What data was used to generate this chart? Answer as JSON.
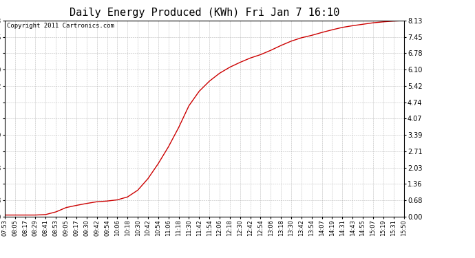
{
  "title": "Daily Energy Produced (KWh) Fri Jan 7 16:10",
  "copyright": "Copyright 2011 Cartronics.com",
  "line_color": "#cc0000",
  "bg_color": "#ffffff",
  "plot_bg_color": "#ffffff",
  "grid_color": "#aaaaaa",
  "yticks": [
    0.0,
    0.68,
    1.36,
    2.03,
    2.71,
    3.39,
    4.07,
    4.74,
    5.42,
    6.1,
    6.78,
    7.45,
    8.13
  ],
  "ymax": 8.13,
  "ymin": 0.0,
  "x_labels": [
    "07:53",
    "08:05",
    "08:17",
    "08:29",
    "08:41",
    "08:53",
    "09:05",
    "09:17",
    "09:30",
    "09:42",
    "09:54",
    "10:06",
    "10:18",
    "10:30",
    "10:42",
    "10:54",
    "11:06",
    "11:18",
    "11:30",
    "11:42",
    "11:54",
    "12:06",
    "12:18",
    "12:30",
    "12:42",
    "12:54",
    "13:06",
    "13:18",
    "13:30",
    "13:42",
    "13:54",
    "14:07",
    "14:19",
    "14:31",
    "14:43",
    "14:55",
    "15:07",
    "15:19",
    "15:31",
    "15:50"
  ],
  "y_values": [
    0.07,
    0.07,
    0.07,
    0.07,
    0.09,
    0.2,
    0.38,
    0.47,
    0.55,
    0.62,
    0.65,
    0.7,
    0.82,
    1.1,
    1.58,
    2.2,
    2.9,
    3.7,
    4.6,
    5.2,
    5.62,
    5.95,
    6.2,
    6.4,
    6.58,
    6.72,
    6.9,
    7.1,
    7.28,
    7.42,
    7.52,
    7.64,
    7.75,
    7.85,
    7.92,
    7.98,
    8.04,
    8.08,
    8.11,
    8.13
  ],
  "title_fontsize": 11,
  "copyright_fontsize": 6.5,
  "tick_fontsize": 6,
  "ytick_fontsize": 7,
  "figsize": [
    6.9,
    3.75
  ],
  "dpi": 100
}
